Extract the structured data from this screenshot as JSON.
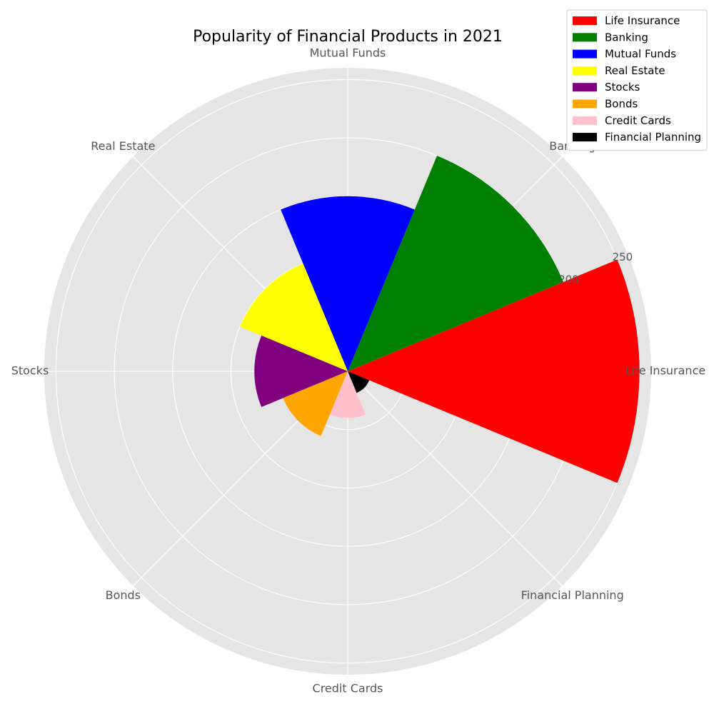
{
  "chart_data": {
    "type": "polar-bar",
    "title": "Popularity of Financial Products in 2021",
    "categories": [
      "Life Insurance",
      "Banking",
      "Mutual Funds",
      "Real Estate",
      "Stocks",
      "Bonds",
      "Credit Cards",
      "Financial Planning"
    ],
    "values": [
      250,
      200,
      150,
      100,
      80,
      60,
      40,
      20
    ],
    "colors": [
      "#ff0000",
      "#008000",
      "#0000ff",
      "#ffff00",
      "#800080",
      "#ffa500",
      "#ffc0cb",
      "#000000"
    ],
    "rmax": 260,
    "radial_ticks": [
      50,
      100,
      150,
      200,
      250
    ],
    "radial_tick_labels": [
      "",
      "",
      "",
      "200",
      "250"
    ],
    "grid": true,
    "legend_position": "top-right"
  }
}
